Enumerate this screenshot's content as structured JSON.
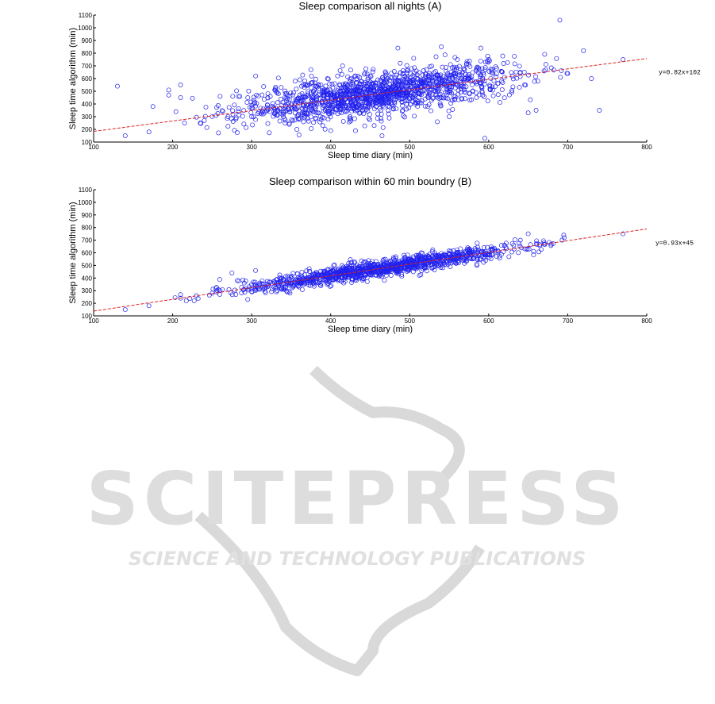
{
  "chart_data": [
    {
      "type": "scatter",
      "title": "Sleep comparison all nights (A)",
      "xlabel": "Sleep time diary (min)",
      "ylabel": "Sleep time algorithm (min)",
      "xlim": [
        100,
        800
      ],
      "ylim": [
        100,
        1100
      ],
      "xticks": [
        "100",
        "200",
        "300",
        "400",
        "500",
        "600",
        "700",
        "800"
      ],
      "yticks": [
        "100",
        "200",
        "300",
        "400",
        "500",
        "600",
        "700",
        "800",
        "900",
        "1000",
        "1100"
      ],
      "grid": false,
      "marker_color": "#2222ee",
      "fit_color": "#dd2222",
      "fit": {
        "equation": "y=0.82x+102",
        "slope": 0.82,
        "intercept": 102
      },
      "points_approx": "~1500",
      "sample_points": [
        [
          130,
          540
        ],
        [
          140,
          150
        ],
        [
          170,
          180
        ],
        [
          175,
          380
        ],
        [
          195,
          510
        ],
        [
          195,
          470
        ],
        [
          210,
          450
        ],
        [
          210,
          550
        ],
        [
          215,
          250
        ],
        [
          225,
          445
        ],
        [
          235,
          250
        ],
        [
          240,
          270
        ],
        [
          255,
          310
        ],
        [
          260,
          460
        ],
        [
          270,
          300
        ],
        [
          280,
          280
        ],
        [
          285,
          460
        ],
        [
          295,
          450
        ],
        [
          300,
          300
        ],
        [
          305,
          620
        ],
        [
          320,
          390
        ],
        [
          330,
          520
        ],
        [
          340,
          300
        ],
        [
          345,
          440
        ],
        [
          355,
          580
        ],
        [
          365,
          400
        ],
        [
          375,
          670
        ],
        [
          380,
          360
        ],
        [
          390,
          230
        ],
        [
          395,
          500
        ],
        [
          400,
          190
        ],
        [
          405,
          560
        ],
        [
          410,
          380
        ],
        [
          415,
          700
        ],
        [
          425,
          280
        ],
        [
          430,
          440
        ],
        [
          440,
          350
        ],
        [
          450,
          620
        ],
        [
          455,
          230
        ],
        [
          465,
          150
        ],
        [
          470,
          480
        ],
        [
          480,
          510
        ],
        [
          485,
          840
        ],
        [
          490,
          420
        ],
        [
          505,
          760
        ],
        [
          515,
          580
        ],
        [
          525,
          640
        ],
        [
          535,
          260
        ],
        [
          540,
          850
        ],
        [
          550,
          300
        ],
        [
          565,
          520
        ],
        [
          575,
          600
        ],
        [
          590,
          840
        ],
        [
          595,
          130
        ],
        [
          600,
          750
        ],
        [
          610,
          680
        ],
        [
          620,
          610
        ],
        [
          630,
          620
        ],
        [
          645,
          650
        ],
        [
          650,
          330
        ],
        [
          660,
          350
        ],
        [
          670,
          660
        ],
        [
          690,
          1060
        ],
        [
          700,
          640
        ],
        [
          720,
          820
        ],
        [
          730,
          600
        ],
        [
          740,
          350
        ],
        [
          770,
          750
        ]
      ]
    },
    {
      "type": "scatter",
      "title": "Sleep comparison within 60 min boundry (B)",
      "xlabel": "Sleep time diary (min)",
      "ylabel": "Sleep time algorithm (min)",
      "xlim": [
        100,
        800
      ],
      "ylim": [
        100,
        1100
      ],
      "xticks": [
        "100",
        "200",
        "300",
        "400",
        "500",
        "600",
        "700",
        "800"
      ],
      "yticks": [
        "100",
        "200",
        "300",
        "400",
        "500",
        "600",
        "700",
        "800",
        "900",
        "1000",
        "1100"
      ],
      "grid": false,
      "marker_color": "#2222ee",
      "fit_color": "#dd2222",
      "fit": {
        "equation": "y=0.93x+45",
        "slope": 0.93,
        "intercept": 45
      },
      "points_approx": "~1300",
      "sample_points": [
        [
          140,
          150
        ],
        [
          170,
          180
        ],
        [
          210,
          240
        ],
        [
          230,
          260
        ],
        [
          250,
          280
        ],
        [
          260,
          300
        ],
        [
          275,
          440
        ],
        [
          280,
          270
        ],
        [
          295,
          230
        ],
        [
          300,
          310
        ],
        [
          305,
          460
        ],
        [
          320,
          330
        ],
        [
          340,
          360
        ],
        [
          355,
          380
        ],
        [
          370,
          400
        ],
        [
          380,
          430
        ],
        [
          395,
          420
        ],
        [
          410,
          450
        ],
        [
          420,
          470
        ],
        [
          430,
          520
        ],
        [
          445,
          480
        ],
        [
          455,
          500
        ],
        [
          470,
          520
        ],
        [
          480,
          500
        ],
        [
          500,
          520
        ],
        [
          515,
          540
        ],
        [
          530,
          560
        ],
        [
          545,
          580
        ],
        [
          560,
          600
        ],
        [
          575,
          620
        ],
        [
          590,
          610
        ],
        [
          605,
          630
        ],
        [
          620,
          660
        ],
        [
          640,
          700
        ],
        [
          650,
          750
        ],
        [
          670,
          680
        ],
        [
          695,
          740
        ],
        [
          770,
          750
        ]
      ]
    }
  ],
  "watermark": {
    "brand": "SCITEPRESS",
    "tagline": "SCIENCE AND TECHNOLOGY PUBLICATIONS",
    "color": "#d9d9d9"
  }
}
